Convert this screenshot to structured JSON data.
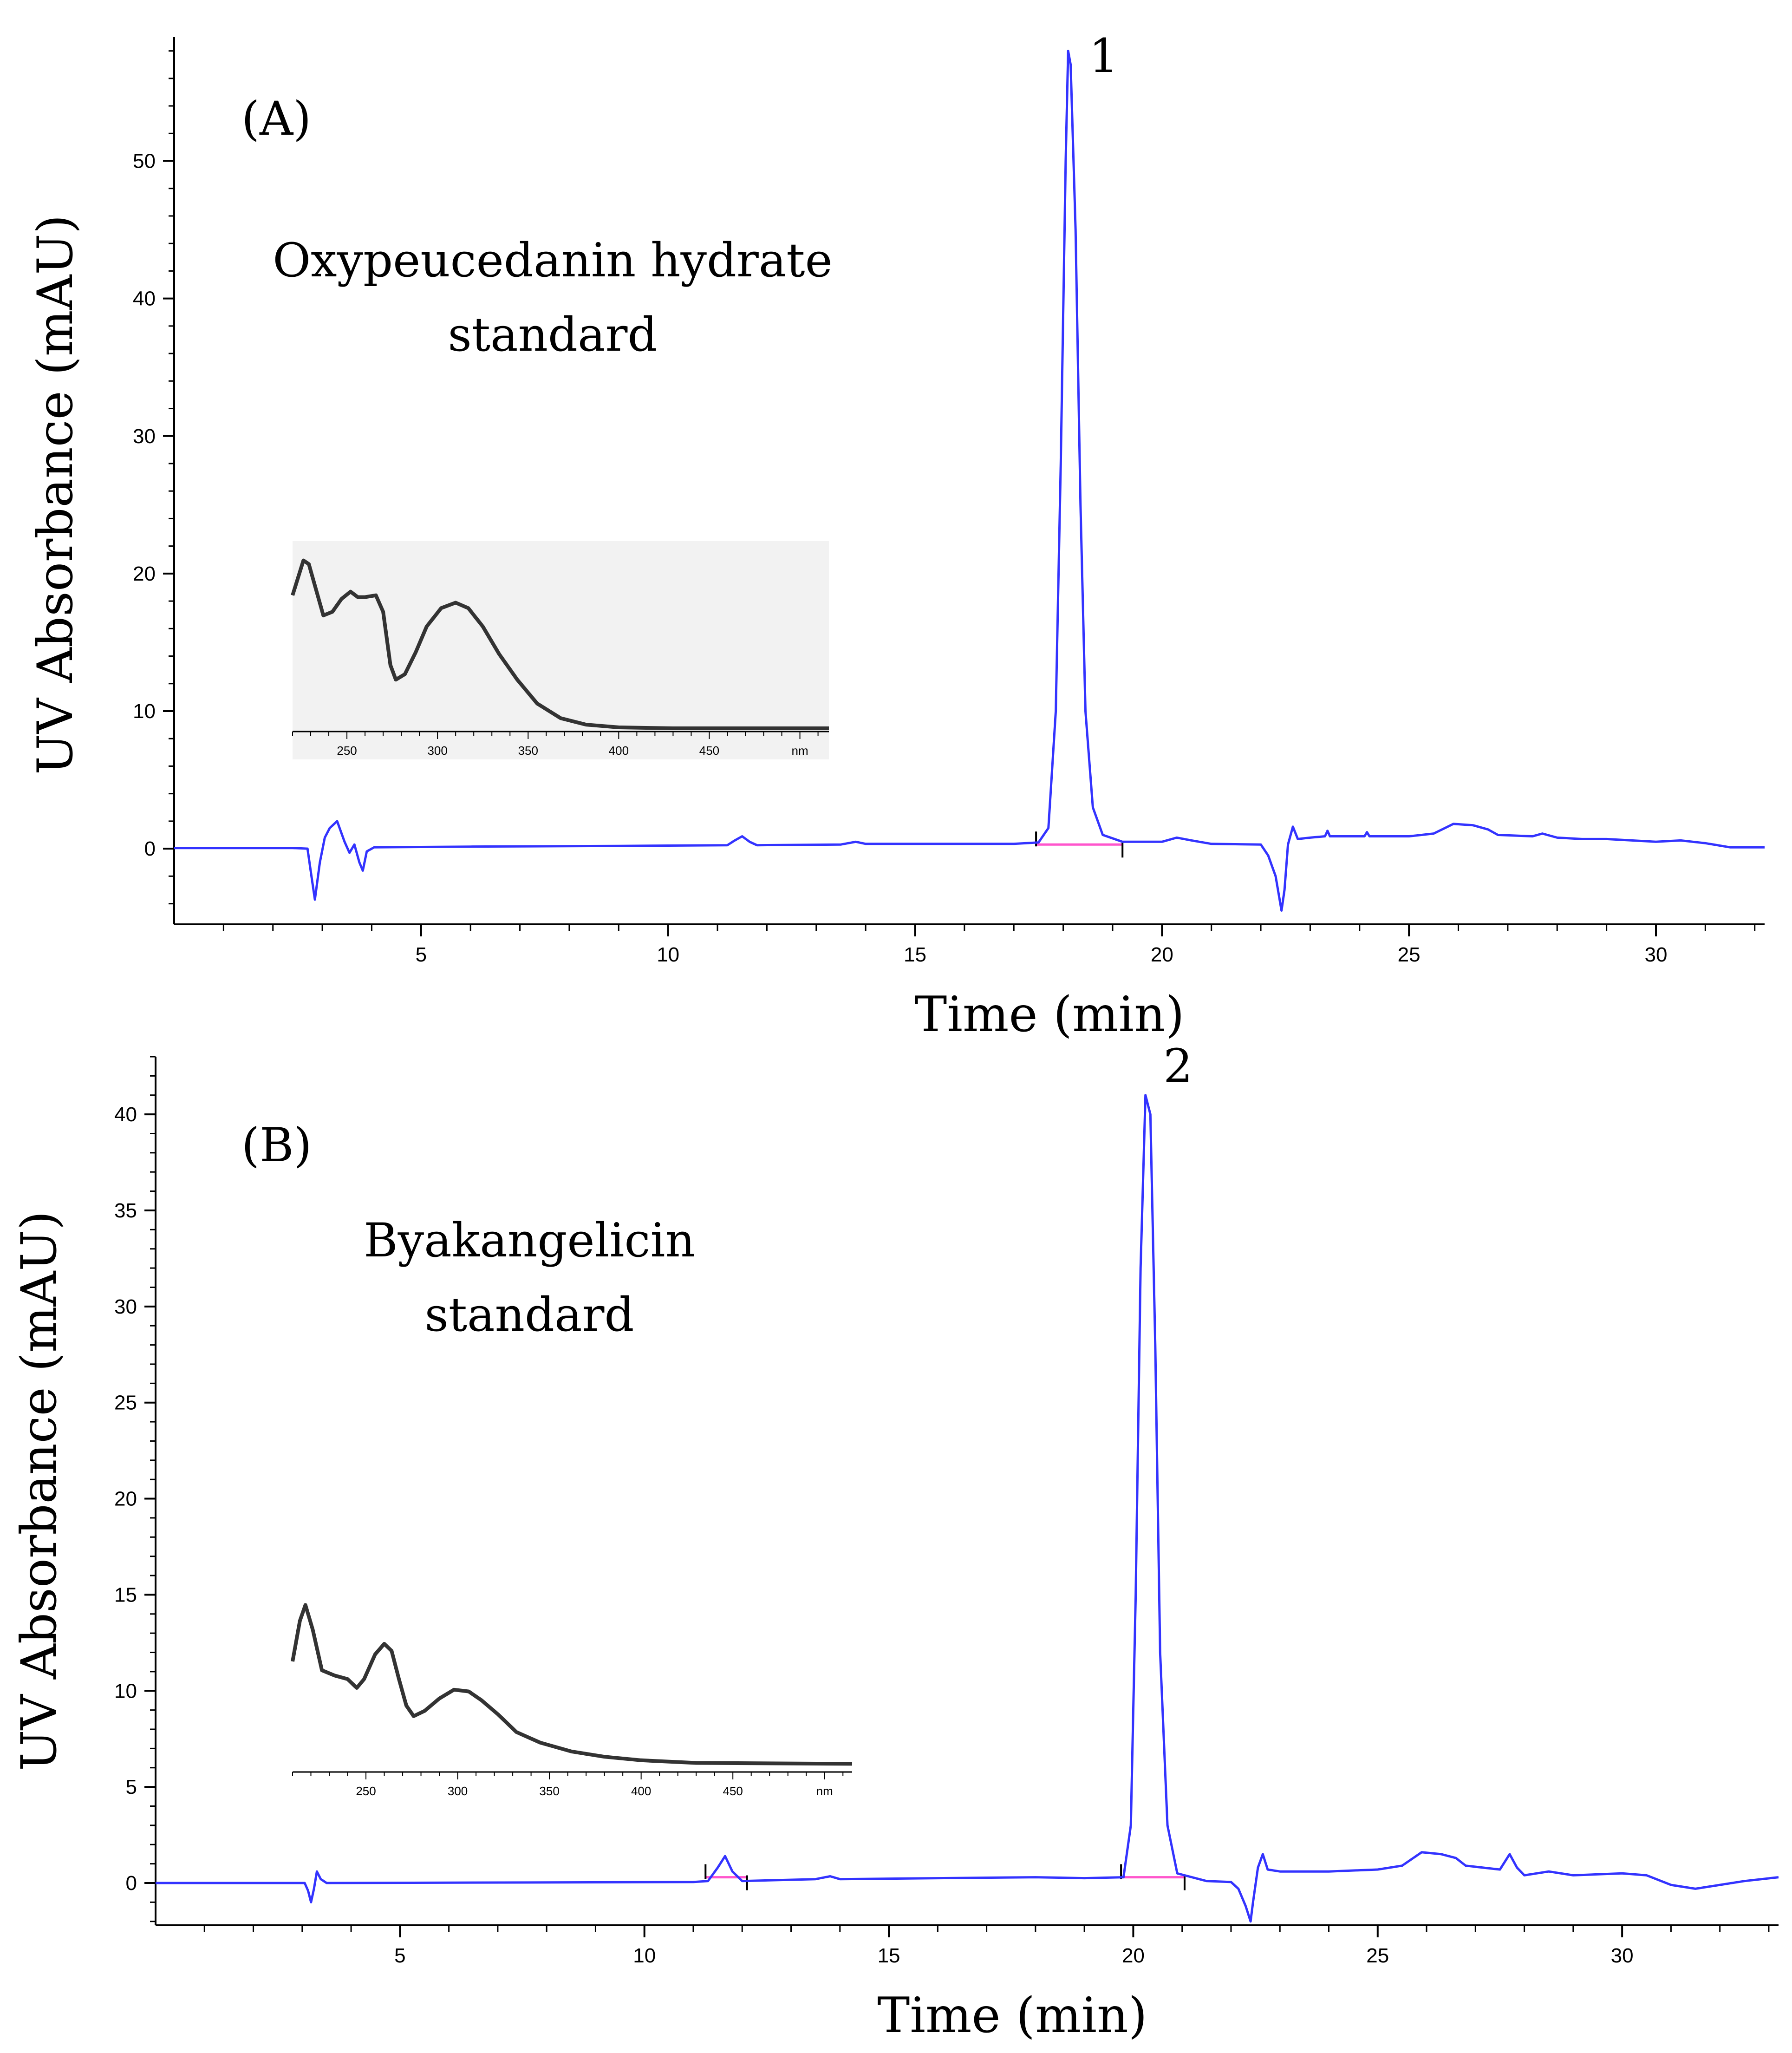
{
  "chart_data": [
    {
      "type": "line",
      "panel_label": "(A)",
      "annotation_lines": [
        "Oxypeucedanin hydrate",
        "standard"
      ],
      "peak_label": "1",
      "peak_x": 18.1,
      "xlabel": "Time (min)",
      "ylabel": "UV Absorbance (mAU)",
      "xlim": [
        0,
        32.2
      ],
      "ylim": [
        -5.5,
        59
      ],
      "xticks": [
        5,
        10,
        15,
        20,
        25,
        30
      ],
      "xtick_labels": [
        "5",
        "10",
        "15",
        "20",
        "25",
        "30"
      ],
      "yticks": [
        0,
        10,
        20,
        30,
        40,
        50
      ],
      "ytick_labels": [
        "0",
        "10",
        "20",
        "30",
        "40",
        "50"
      ],
      "series": [
        {
          "name": "chromatogram",
          "color": "#3333ff",
          "points": [
            [
              0,
              0.05
            ],
            [
              2.4,
              0.05
            ],
            [
              2.7,
              0
            ],
            [
              2.78,
              -2
            ],
            [
              2.85,
              -3.7
            ],
            [
              2.95,
              -1
            ],
            [
              3.05,
              0.8
            ],
            [
              3.15,
              1.5
            ],
            [
              3.3,
              2
            ],
            [
              3.45,
              0.5
            ],
            [
              3.55,
              -0.3
            ],
            [
              3.65,
              0.3
            ],
            [
              3.75,
              -1
            ],
            [
              3.82,
              -1.6
            ],
            [
              3.9,
              -0.2
            ],
            [
              4.05,
              0.1
            ],
            [
              6,
              0.15
            ],
            [
              9,
              0.2
            ],
            [
              11.2,
              0.25
            ],
            [
              11.35,
              0.6
            ],
            [
              11.5,
              0.9
            ],
            [
              11.65,
              0.5
            ],
            [
              11.8,
              0.25
            ],
            [
              13.5,
              0.3
            ],
            [
              13.8,
              0.5
            ],
            [
              14,
              0.35
            ],
            [
              17,
              0.35
            ],
            [
              17.5,
              0.45
            ],
            [
              17.7,
              1.5
            ],
            [
              17.85,
              10
            ],
            [
              17.95,
              28
            ],
            [
              18.05,
              50
            ],
            [
              18.1,
              58
            ],
            [
              18.15,
              57
            ],
            [
              18.25,
              45
            ],
            [
              18.35,
              25
            ],
            [
              18.45,
              10
            ],
            [
              18.6,
              3
            ],
            [
              18.8,
              1
            ],
            [
              19.2,
              0.5
            ],
            [
              20,
              0.5
            ],
            [
              20.3,
              0.8
            ],
            [
              20.6,
              0.6
            ],
            [
              21,
              0.35
            ],
            [
              22,
              0.3
            ],
            [
              22.15,
              -0.5
            ],
            [
              22.3,
              -2
            ],
            [
              22.42,
              -4.5
            ],
            [
              22.48,
              -3
            ],
            [
              22.55,
              0.3
            ],
            [
              22.65,
              1.6
            ],
            [
              22.75,
              0.7
            ],
            [
              23,
              0.8
            ],
            [
              23.3,
              0.9
            ],
            [
              23.35,
              1.3
            ],
            [
              23.4,
              0.9
            ],
            [
              24.1,
              0.9
            ],
            [
              24.15,
              1.2
            ],
            [
              24.2,
              0.9
            ],
            [
              25,
              0.9
            ],
            [
              25.5,
              1.1
            ],
            [
              25.9,
              1.8
            ],
            [
              26.3,
              1.7
            ],
            [
              26.6,
              1.4
            ],
            [
              26.8,
              1
            ],
            [
              27.5,
              0.9
            ],
            [
              27.7,
              1.1
            ],
            [
              28,
              0.8
            ],
            [
              28.5,
              0.7
            ],
            [
              29,
              0.7
            ],
            [
              30,
              0.5
            ],
            [
              30.5,
              0.6
            ],
            [
              31,
              0.4
            ],
            [
              31.5,
              0.1
            ],
            [
              32.2,
              0.1
            ]
          ]
        }
      ],
      "integration_baselines": [
        [
          17.45,
          19.2
        ]
      ],
      "inset": {
        "xlim": [
          220,
          516
        ],
        "xticks": [
          250,
          300,
          350,
          400,
          450,
          500
        ],
        "xtick_labels": [
          "250",
          "300",
          "350",
          "400",
          "450",
          "nm"
        ],
        "ylim": [
          0,
          1
        ],
        "points": [
          [
            220,
            0.73
          ],
          [
            226,
            0.92
          ],
          [
            229,
            0.9
          ],
          [
            233,
            0.76
          ],
          [
            237,
            0.62
          ],
          [
            242,
            0.64
          ],
          [
            247,
            0.71
          ],
          [
            252,
            0.75
          ],
          [
            256,
            0.72
          ],
          [
            260,
            0.72
          ],
          [
            266,
            0.73
          ],
          [
            270,
            0.64
          ],
          [
            274,
            0.35
          ],
          [
            277,
            0.27
          ],
          [
            282,
            0.3
          ],
          [
            288,
            0.42
          ],
          [
            294,
            0.56
          ],
          [
            302,
            0.66
          ],
          [
            310,
            0.69
          ],
          [
            317,
            0.66
          ],
          [
            325,
            0.56
          ],
          [
            334,
            0.41
          ],
          [
            344,
            0.27
          ],
          [
            355,
            0.14
          ],
          [
            368,
            0.06
          ],
          [
            382,
            0.025
          ],
          [
            400,
            0.01
          ],
          [
            430,
            0.005
          ],
          [
            516,
            0.005
          ]
        ]
      }
    },
    {
      "type": "line",
      "panel_label": "(B)",
      "annotation_lines": [
        "Byakangelicin",
        "standard"
      ],
      "peak_label": "2",
      "peak_x": 20.3,
      "xlabel": "Time (min)",
      "ylabel": "UV Absorbance (mAU)",
      "xlim": [
        0,
        33.2
      ],
      "ylim": [
        -2.2,
        43
      ],
      "xticks": [
        5,
        10,
        15,
        20,
        25,
        30
      ],
      "xtick_labels": [
        "5",
        "10",
        "15",
        "20",
        "25",
        "30"
      ],
      "yticks": [
        0,
        5,
        10,
        15,
        20,
        25,
        30,
        35,
        40
      ],
      "ytick_labels": [
        "0",
        "5",
        "10",
        "15",
        "20",
        "25",
        "30",
        "35",
        "40"
      ],
      "series": [
        {
          "name": "chromatogram",
          "color": "#3333ff",
          "points": [
            [
              0,
              0
            ],
            [
              3.05,
              0
            ],
            [
              3.12,
              -0.4
            ],
            [
              3.18,
              -1
            ],
            [
              3.24,
              -0.3
            ],
            [
              3.3,
              0.6
            ],
            [
              3.38,
              0.2
            ],
            [
              3.5,
              0
            ],
            [
              11,
              0.05
            ],
            [
              11.3,
              0.1
            ],
            [
              11.5,
              0.8
            ],
            [
              11.65,
              1.4
            ],
            [
              11.8,
              0.6
            ],
            [
              12,
              0.1
            ],
            [
              13.5,
              0.2
            ],
            [
              13.8,
              0.35
            ],
            [
              14,
              0.2
            ],
            [
              18,
              0.3
            ],
            [
              19,
              0.25
            ],
            [
              19.8,
              0.3
            ],
            [
              19.95,
              3
            ],
            [
              20.05,
              15
            ],
            [
              20.15,
              32
            ],
            [
              20.25,
              41
            ],
            [
              20.35,
              40
            ],
            [
              20.45,
              28
            ],
            [
              20.55,
              12
            ],
            [
              20.7,
              3
            ],
            [
              20.9,
              0.5
            ],
            [
              21.5,
              0.1
            ],
            [
              22,
              0.05
            ],
            [
              22.15,
              -0.3
            ],
            [
              22.3,
              -1.2
            ],
            [
              22.4,
              -2
            ],
            [
              22.45,
              -1
            ],
            [
              22.55,
              0.8
            ],
            [
              22.65,
              1.5
            ],
            [
              22.75,
              0.7
            ],
            [
              23,
              0.6
            ],
            [
              24,
              0.6
            ],
            [
              25,
              0.7
            ],
            [
              25.5,
              0.9
            ],
            [
              25.9,
              1.6
            ],
            [
              26.3,
              1.5
            ],
            [
              26.6,
              1.3
            ],
            [
              26.8,
              0.9
            ],
            [
              27.5,
              0.7
            ],
            [
              27.7,
              1.5
            ],
            [
              27.85,
              0.8
            ],
            [
              28,
              0.4
            ],
            [
              28.5,
              0.6
            ],
            [
              29,
              0.4
            ],
            [
              30,
              0.5
            ],
            [
              30.5,
              0.4
            ],
            [
              31,
              -0.1
            ],
            [
              31.5,
              -0.3
            ],
            [
              32,
              -0.1
            ],
            [
              32.5,
              0.1
            ],
            [
              33.2,
              0.3
            ]
          ]
        }
      ],
      "integration_baselines": [
        [
          11.25,
          12.1
        ],
        [
          19.75,
          21.05
        ]
      ],
      "inset": {
        "xlim": [
          210,
          515
        ],
        "xticks": [
          250,
          300,
          350,
          400,
          450,
          500
        ],
        "xtick_labels": [
          "250",
          "300",
          "350",
          "400",
          "450",
          "nm"
        ],
        "ylim": [
          0,
          1
        ],
        "points": [
          [
            210,
            0.6
          ],
          [
            214,
            0.83
          ],
          [
            217,
            0.92
          ],
          [
            221,
            0.78
          ],
          [
            226,
            0.55
          ],
          [
            233,
            0.52
          ],
          [
            240,
            0.5
          ],
          [
            245,
            0.45
          ],
          [
            249,
            0.5
          ],
          [
            255,
            0.64
          ],
          [
            260,
            0.7
          ],
          [
            264,
            0.66
          ],
          [
            268,
            0.5
          ],
          [
            272,
            0.35
          ],
          [
            276,
            0.29
          ],
          [
            282,
            0.32
          ],
          [
            290,
            0.39
          ],
          [
            298,
            0.44
          ],
          [
            306,
            0.43
          ],
          [
            313,
            0.38
          ],
          [
            322,
            0.3
          ],
          [
            332,
            0.2
          ],
          [
            345,
            0.14
          ],
          [
            362,
            0.09
          ],
          [
            380,
            0.06
          ],
          [
            400,
            0.04
          ],
          [
            430,
            0.025
          ],
          [
            515,
            0.02
          ]
        ]
      }
    }
  ]
}
